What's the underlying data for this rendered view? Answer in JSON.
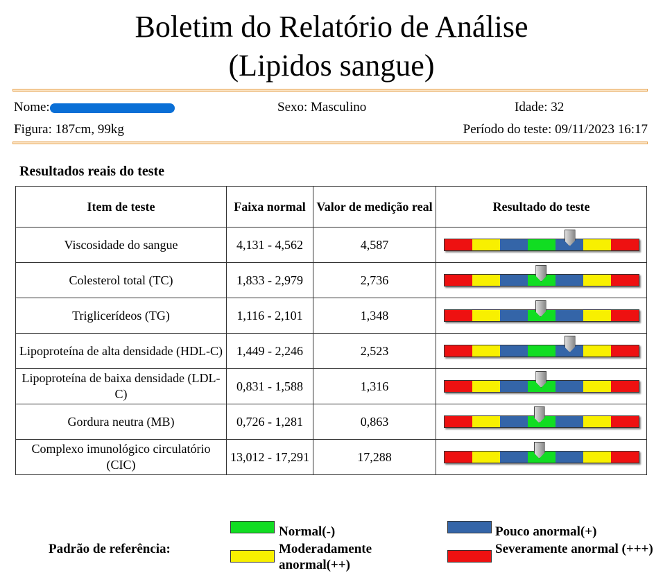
{
  "title": [
    "Boletim do Relatório de Análise",
    "(Lipidos sangue)"
  ],
  "info": {
    "name_label": "Nome:",
    "sex": "Sexo: Masculino",
    "age": "Idade: 32",
    "figure": "Figura: 187cm, 99kg",
    "period": "Período do teste: 09/11/2023 16:17"
  },
  "section_title": "Resultados reais do teste",
  "headers": [
    "Item de teste",
    "Faixa normal",
    "Valor de medição real",
    "Resultado do teste"
  ],
  "colors": {
    "red": "#ee1111",
    "yellow": "#f8f000",
    "blue": "#3465a8",
    "green": "#11dd22"
  },
  "scale": [
    "red",
    "yellow",
    "blue",
    "green",
    "blue",
    "yellow",
    "red"
  ],
  "rows": [
    {
      "item": "Viscosidade do sangue",
      "range": "4,131 - 4,562",
      "value": "4,587",
      "marker": 0.643
    },
    {
      "item": "Colesterol total (TC)",
      "range": "1,833 - 2,979",
      "value": "2,736",
      "marker": 0.496
    },
    {
      "item": "Triglicerídeos (TG)",
      "range": "1,116 - 2,101",
      "value": "1,348",
      "marker": 0.493
    },
    {
      "item": "Lipoproteína de alta densidade (HDL-C)",
      "range": "1,449 - 2,246",
      "value": "2,523",
      "marker": 0.643
    },
    {
      "item": "Lipoproteína de baixa densidade (LDL-C)",
      "range": "0,831 - 1,588",
      "value": "1,316",
      "marker": 0.496
    },
    {
      "item": "Gordura neutra (MB)",
      "range": "0,726 - 1,281",
      "value": "0,863",
      "marker": 0.486
    },
    {
      "item": "Complexo imunológico circulatório (CIC)",
      "range": "13,012 - 17,291",
      "value": "17,288",
      "marker": 0.486
    }
  ],
  "legend": {
    "label": "Padrão de referência:",
    "normal": "Normal(-)",
    "moderate": "Moderadamente anormal(++)",
    "slight": "Pouco anormal(+)",
    "severe": "Severamente anormal (+++)"
  }
}
